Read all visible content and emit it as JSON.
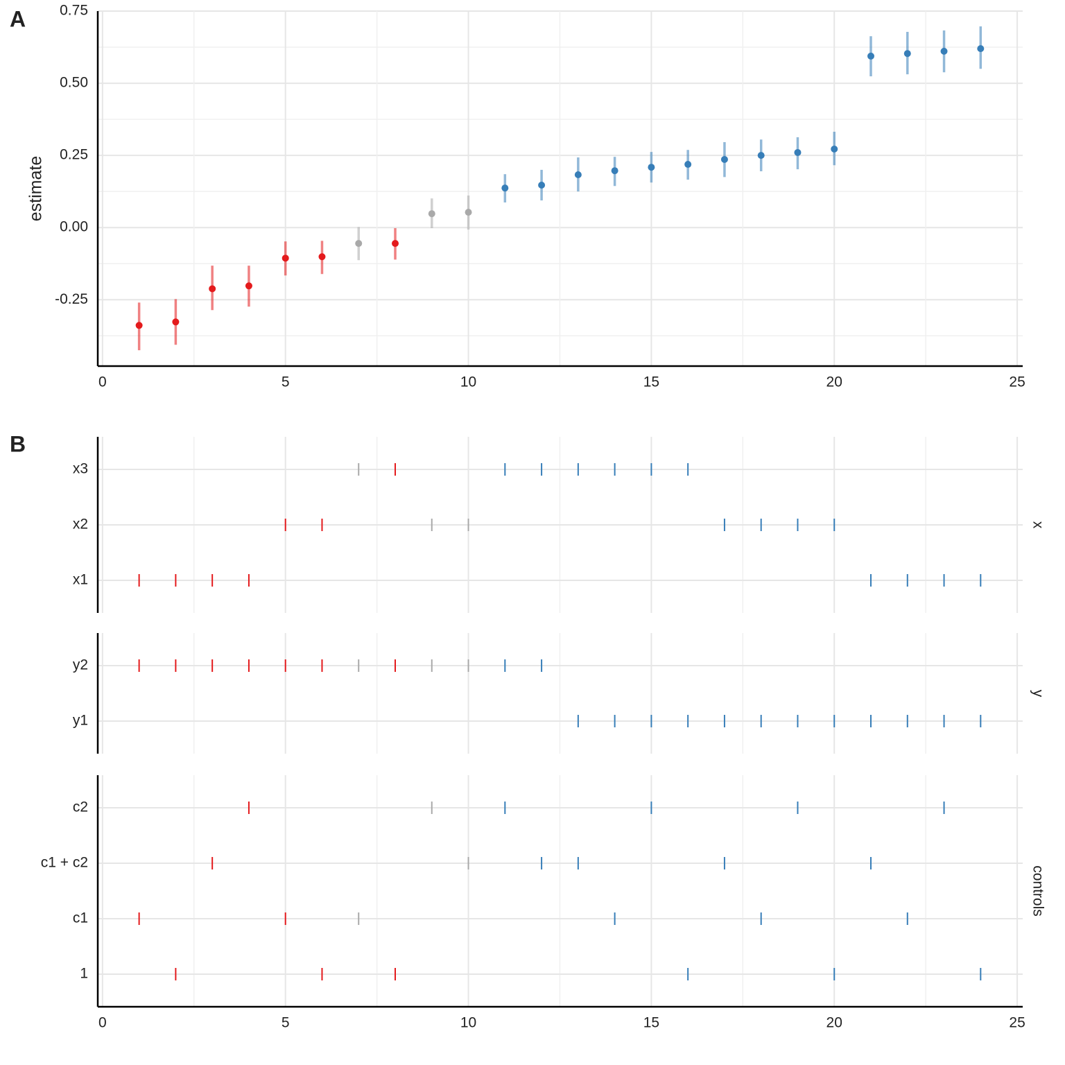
{
  "chart_data": [
    {
      "type": "errorbar",
      "panel": "A",
      "ylabel": "estimate",
      "x": [
        1,
        2,
        3,
        4,
        5,
        6,
        7,
        8,
        9,
        10,
        11,
        12,
        13,
        14,
        15,
        16,
        17,
        18,
        19,
        20,
        21,
        22,
        23,
        24
      ],
      "values": [
        -0.339,
        -0.327,
        -0.212,
        -0.202,
        -0.106,
        -0.101,
        -0.055,
        -0.055,
        0.048,
        0.053,
        0.137,
        0.147,
        0.183,
        0.197,
        0.209,
        0.219,
        0.236,
        0.25,
        0.26,
        0.272,
        0.594,
        0.603,
        0.611,
        0.62
      ],
      "ci_low": [
        -0.425,
        -0.406,
        -0.286,
        -0.274,
        -0.166,
        -0.161,
        -0.113,
        -0.111,
        -0.002,
        -0.007,
        0.087,
        0.094,
        0.125,
        0.144,
        0.156,
        0.166,
        0.175,
        0.195,
        0.202,
        0.216,
        0.524,
        0.531,
        0.538,
        0.55
      ],
      "ci_high": [
        -0.26,
        -0.248,
        -0.132,
        -0.132,
        -0.048,
        -0.046,
        0.002,
        -0.002,
        0.101,
        0.111,
        0.185,
        0.2,
        0.243,
        0.245,
        0.262,
        0.269,
        0.296,
        0.305,
        0.313,
        0.332,
        0.663,
        0.678,
        0.683,
        0.697
      ],
      "colors": [
        "#e41a1c",
        "#e41a1c",
        "#e41a1c",
        "#e41a1c",
        "#e41a1c",
        "#e41a1c",
        "#a9a9a9",
        "#e41a1c",
        "#a9a9a9",
        "#a9a9a9",
        "#377eb8",
        "#377eb8",
        "#377eb8",
        "#377eb8",
        "#377eb8",
        "#377eb8",
        "#377eb8",
        "#377eb8",
        "#377eb8",
        "#377eb8",
        "#377eb8",
        "#377eb8",
        "#377eb8",
        "#377eb8"
      ],
      "xlim": [
        -0.13,
        25.15
      ],
      "ylim": [
        -0.48,
        0.75
      ],
      "xticks": [
        0,
        5,
        10,
        15,
        20,
        25
      ],
      "yticks": [
        {
          "value": -0.25,
          "label": "-0.25"
        },
        {
          "value": 0,
          "label": "0.00"
        },
        0.25,
        {
          "value": 0.5,
          "label": "0.50"
        },
        0.75
      ],
      "x_minor": [
        2.5,
        7.5,
        12.5,
        17.5,
        22.5
      ],
      "y_minor": [
        -0.375,
        -0.125,
        0.125,
        0.375,
        0.625
      ],
      "grid": true
    },
    {
      "type": "specification",
      "panel": "B",
      "facets": [
        {
          "name": "x",
          "rows": [
            {
              "name": "x3",
              "x": [
                7,
                8,
                11,
                12,
                13,
                14,
                15,
                16
              ]
            },
            {
              "name": "x2",
              "x": [
                5,
                6,
                9,
                10,
                17,
                18,
                19,
                20
              ]
            },
            {
              "name": "x1",
              "x": [
                1,
                2,
                3,
                4,
                21,
                22,
                23,
                24
              ]
            }
          ]
        },
        {
          "name": "y",
          "rows": [
            {
              "name": "y2",
              "x": [
                1,
                2,
                3,
                4,
                5,
                6,
                7,
                8,
                9,
                10,
                11,
                12
              ]
            },
            {
              "name": "y1",
              "x": [
                13,
                14,
                15,
                16,
                17,
                18,
                19,
                20,
                21,
                22,
                23,
                24
              ]
            }
          ]
        },
        {
          "name": "controls",
          "rows": [
            {
              "name": "c2",
              "x": [
                4,
                9,
                11,
                15,
                19,
                23
              ]
            },
            {
              "name": "c1 + c2",
              "x": [
                3,
                10,
                12,
                13,
                17,
                21
              ]
            },
            {
              "name": "c1",
              "x": [
                1,
                5,
                7,
                14,
                18,
                22
              ]
            },
            {
              "name": "1",
              "x": [
                2,
                6,
                8,
                16,
                20,
                24
              ]
            }
          ]
        }
      ],
      "xlim": [
        -0.13,
        25.15
      ],
      "xticks": [
        0,
        5,
        10,
        15,
        20,
        25
      ],
      "x_minor": [
        2.5,
        7.5,
        12.5,
        17.5,
        22.5
      ],
      "grid": true
    }
  ]
}
